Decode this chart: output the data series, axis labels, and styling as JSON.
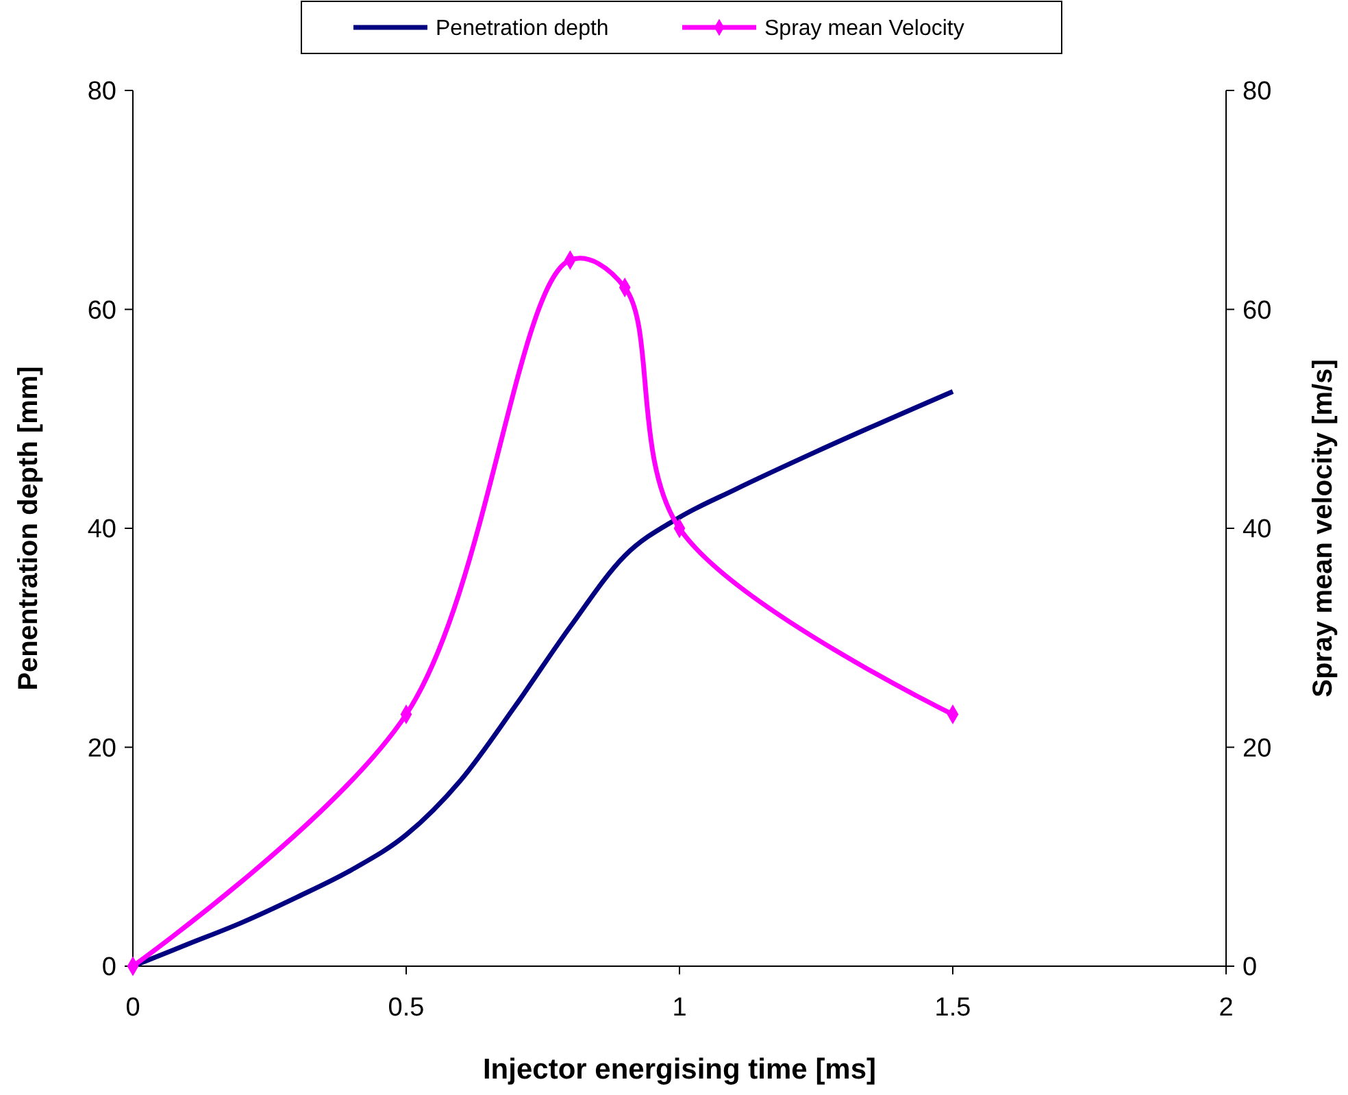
{
  "chart_data": {
    "type": "line",
    "xlabel": "Injector energising time [ms]",
    "ylabel": "Penentration depth [mm]",
    "y2label": "Spray mean velocity [m/s]",
    "xlim": [
      0,
      2
    ],
    "xticks": [
      0,
      0.5,
      1,
      1.5,
      2
    ],
    "ylim": [
      0,
      80
    ],
    "yticks": [
      0,
      20,
      40,
      60,
      80
    ],
    "y2lim": [
      0,
      80
    ],
    "y2ticks": [
      0,
      20,
      40,
      60,
      80
    ],
    "grid": false,
    "legend": "top",
    "series": [
      {
        "name": "Penetration  depth",
        "color": "#000080",
        "marker": "none",
        "x": [
          0,
          0.1,
          0.2,
          0.3,
          0.4,
          0.5,
          0.6,
          0.7,
          0.8,
          0.9,
          1.0,
          1.1,
          1.25,
          1.5
        ],
        "values": [
          0,
          2,
          4,
          6.3,
          8.8,
          12,
          17,
          23.8,
          31,
          37.5,
          41,
          43.5,
          47,
          52.5
        ]
      },
      {
        "name": "Spray mean Velocity",
        "color": "#ff00ff",
        "marker": "diamond",
        "axis": "y2",
        "x": [
          0,
          0.5,
          0.8,
          0.9,
          1.0,
          1.5
        ],
        "values": [
          0,
          23,
          64.5,
          62,
          40,
          23
        ]
      }
    ]
  }
}
